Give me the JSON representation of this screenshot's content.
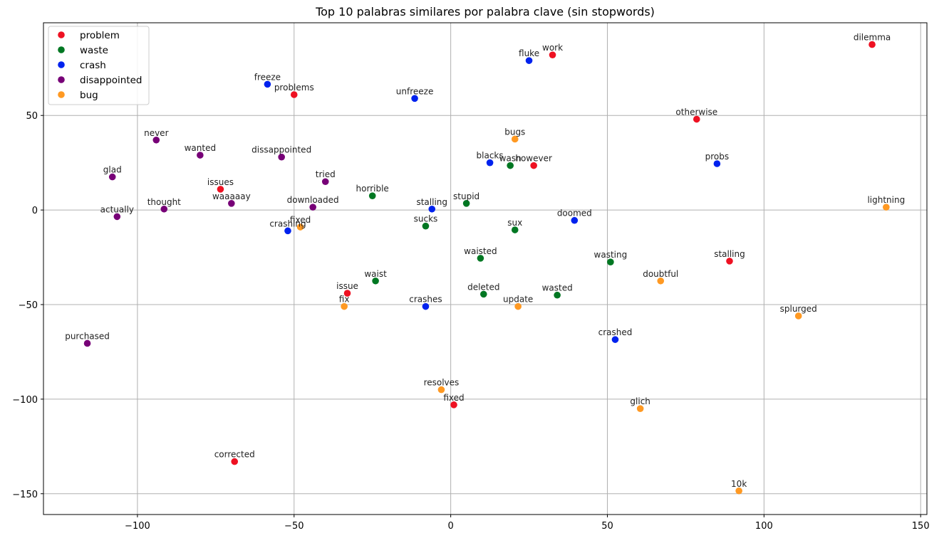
{
  "chart_data": {
    "type": "scatter",
    "title": "Top 10 palabras similares por palabra clave (sin stopwords)",
    "xlabel": "",
    "ylabel": "",
    "xlim": [
      -130,
      152
    ],
    "ylim": [
      -161,
      99
    ],
    "xticks": [
      -100,
      -50,
      0,
      50,
      100,
      150
    ],
    "yticks": [
      -150,
      -100,
      -50,
      0,
      50
    ],
    "xtick_labels": [
      "−100",
      "−50",
      "0",
      "50",
      "100",
      "150"
    ],
    "ytick_labels": [
      "−150",
      "−100",
      "−50",
      "0",
      "50"
    ],
    "grid": true,
    "legend_position": "top-left",
    "series": [
      {
        "name": "problem",
        "color": "#ee1122",
        "points": [
          {
            "x": -50,
            "y": 61,
            "label": "problems"
          },
          {
            "x": 32.5,
            "y": 82,
            "label": "work"
          },
          {
            "x": 134.5,
            "y": 87.5,
            "label": "dilemma"
          },
          {
            "x": 78.5,
            "y": 48,
            "label": "otherwise"
          },
          {
            "x": 26.5,
            "y": 23.5,
            "label": "however"
          },
          {
            "x": -73.5,
            "y": 11,
            "label": "issues"
          },
          {
            "x": 89,
            "y": -27,
            "label": "stalling"
          },
          {
            "x": -33,
            "y": -44,
            "label": "issue"
          },
          {
            "x": 1,
            "y": -103,
            "label": "fixed"
          },
          {
            "x": -69,
            "y": -133,
            "label": "corrected"
          }
        ]
      },
      {
        "name": "waste",
        "color": "#007722",
        "points": [
          {
            "x": 19,
            "y": 23.5,
            "label": "wasn"
          },
          {
            "x": -25,
            "y": 7.5,
            "label": "horrible"
          },
          {
            "x": 5,
            "y": 3.5,
            "label": "stupid"
          },
          {
            "x": -8,
            "y": -8.5,
            "label": "sucks"
          },
          {
            "x": 20.5,
            "y": -10.5,
            "label": "sux"
          },
          {
            "x": 9.5,
            "y": -25.5,
            "label": "waisted"
          },
          {
            "x": 51,
            "y": -27.5,
            "label": "wasting"
          },
          {
            "x": -24,
            "y": -37.5,
            "label": "waist"
          },
          {
            "x": 10.5,
            "y": -44.5,
            "label": "deleted"
          },
          {
            "x": 34,
            "y": -45,
            "label": "wasted"
          }
        ]
      },
      {
        "name": "crash",
        "color": "#0022ee",
        "points": [
          {
            "x": -58.5,
            "y": 66.5,
            "label": "freeze"
          },
          {
            "x": 25,
            "y": 79,
            "label": "fluke"
          },
          {
            "x": -11.5,
            "y": 59,
            "label": "unfreeze"
          },
          {
            "x": 12.5,
            "y": 25,
            "label": "blacks"
          },
          {
            "x": 85,
            "y": 24.5,
            "label": "probs"
          },
          {
            "x": -6,
            "y": 0.5,
            "label": "stalling"
          },
          {
            "x": 39.5,
            "y": -5.5,
            "label": "doomed"
          },
          {
            "x": -52,
            "y": -11,
            "label": "crashing"
          },
          {
            "x": -8,
            "y": -51,
            "label": "crashes"
          },
          {
            "x": 52.5,
            "y": -68.5,
            "label": "crashed"
          }
        ]
      },
      {
        "name": "disappointed",
        "color": "#770077",
        "points": [
          {
            "x": -94,
            "y": 37,
            "label": "never"
          },
          {
            "x": -80,
            "y": 29,
            "label": "wanted"
          },
          {
            "x": -54,
            "y": 28,
            "label": "dissappointed"
          },
          {
            "x": -108,
            "y": 17.5,
            "label": "glad"
          },
          {
            "x": -40,
            "y": 15,
            "label": "tried"
          },
          {
            "x": -91.5,
            "y": 0.5,
            "label": "thought"
          },
          {
            "x": -70,
            "y": 3.5,
            "label": "waaaaay"
          },
          {
            "x": -44,
            "y": 1.5,
            "label": "downloaded"
          },
          {
            "x": -106.5,
            "y": -3.5,
            "label": "actually"
          },
          {
            "x": -116,
            "y": -70.5,
            "label": "purchased"
          }
        ]
      },
      {
        "name": "bug",
        "color": "#ff9922",
        "points": [
          {
            "x": 20.5,
            "y": 37.5,
            "label": "bugs"
          },
          {
            "x": 139,
            "y": 1.5,
            "label": "lightning"
          },
          {
            "x": -48,
            "y": -9,
            "label": "fixed"
          },
          {
            "x": 67,
            "y": -37.5,
            "label": "doubtful"
          },
          {
            "x": -34,
            "y": -51,
            "label": "fix"
          },
          {
            "x": 21.5,
            "y": -51,
            "label": "update"
          },
          {
            "x": 111,
            "y": -56,
            "label": "splurged"
          },
          {
            "x": -3,
            "y": -95,
            "label": "resolves"
          },
          {
            "x": 60.5,
            "y": -105,
            "label": "glich"
          },
          {
            "x": 92,
            "y": -148.5,
            "label": "10k"
          }
        ]
      }
    ]
  }
}
